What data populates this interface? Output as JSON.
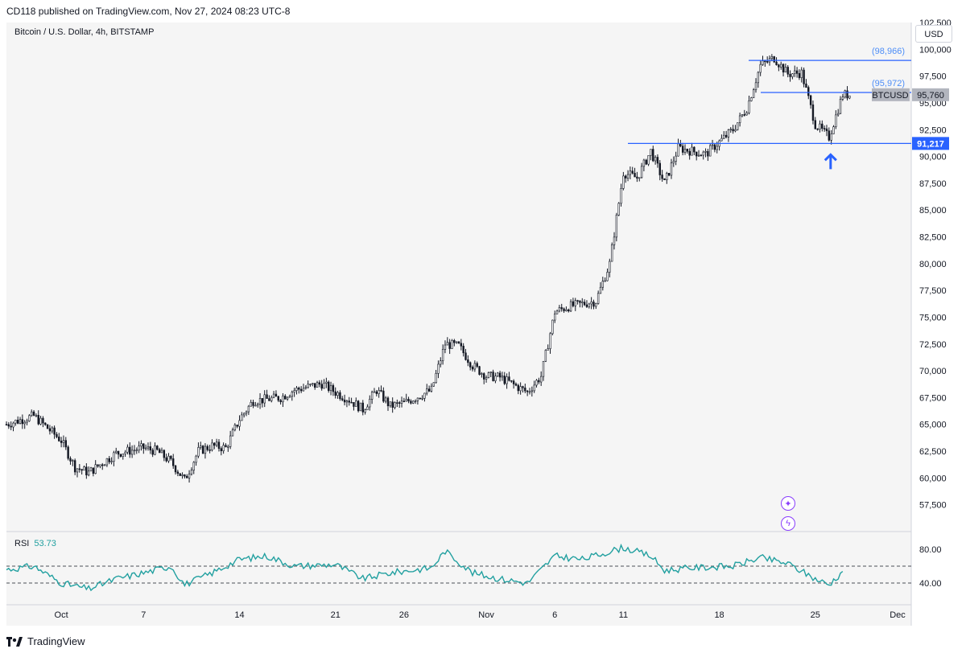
{
  "header": {
    "text": "CD118 published on TradingView.com, Nov 27, 2024 08:23 UTC-8"
  },
  "symbol": {
    "text": "Bitcoin / U.S. Dollar, 4h, BITSTAMP"
  },
  "currency": "USD",
  "rsi": {
    "label": "RSI",
    "value": "53.73"
  },
  "footer": {
    "brand": "TradingView"
  },
  "icons": {
    "sparkle": "sparkle-icon",
    "lightning": "lightning-icon",
    "arrow": "arrow-up-icon",
    "logo": "tradingview-logo-icon"
  },
  "colors": {
    "candle": "#131722",
    "level_line": "#2962ff",
    "rsi_line": "#22a0a0",
    "level_label": "#4e8ef7",
    "current_price_bg": "#b2b5be",
    "support_price_bg": "#2962ff",
    "panel_bg": "#f5f5f5",
    "icon_accent": "#8a3ffc"
  },
  "chart_data": {
    "type": "candlestick",
    "title": "Bitcoin / U.S. Dollar, 4h, BITSTAMP",
    "y_axis": {
      "ylim": [
        55000,
        102500
      ],
      "ticks": [
        "57,500",
        "60,000",
        "62,500",
        "65,000",
        "67,500",
        "70,000",
        "72,500",
        "75,000",
        "77,500",
        "80,000",
        "82,500",
        "85,000",
        "87,500",
        "90,000",
        "92,500",
        "95,000",
        "97,500",
        "100,000",
        "102,500"
      ]
    },
    "x_axis": {
      "ticks": [
        "Oct",
        "7",
        "14",
        "21",
        "26",
        "Nov",
        "6",
        "11",
        "18",
        "25",
        "Dec"
      ]
    },
    "price_path": [
      {
        "date": "2024-09-27",
        "close": 65000
      },
      {
        "date": "2024-09-29",
        "close": 65800
      },
      {
        "date": "2024-10-01",
        "close": 63500
      },
      {
        "date": "2024-10-02",
        "close": 61000
      },
      {
        "date": "2024-10-03",
        "close": 60500
      },
      {
        "date": "2024-10-05",
        "close": 62300
      },
      {
        "date": "2024-10-07",
        "close": 62800
      },
      {
        "date": "2024-10-08",
        "close": 62500
      },
      {
        "date": "2024-10-09",
        "close": 61500
      },
      {
        "date": "2024-10-10",
        "close": 59800
      },
      {
        "date": "2024-10-11",
        "close": 62500
      },
      {
        "date": "2024-10-12",
        "close": 63000
      },
      {
        "date": "2024-10-13",
        "close": 62800
      },
      {
        "date": "2024-10-14",
        "close": 65500
      },
      {
        "date": "2024-10-15",
        "close": 67200
      },
      {
        "date": "2024-10-17",
        "close": 67500
      },
      {
        "date": "2024-10-18",
        "close": 68200
      },
      {
        "date": "2024-10-20",
        "close": 68800
      },
      {
        "date": "2024-10-21",
        "close": 68000
      },
      {
        "date": "2024-10-22",
        "close": 67300
      },
      {
        "date": "2024-10-23",
        "close": 66400
      },
      {
        "date": "2024-10-24",
        "close": 68200
      },
      {
        "date": "2024-10-25",
        "close": 66700
      },
      {
        "date": "2024-10-26",
        "close": 67000
      },
      {
        "date": "2024-10-28",
        "close": 68200
      },
      {
        "date": "2024-10-29",
        "close": 72500
      },
      {
        "date": "2024-10-30",
        "close": 72300
      },
      {
        "date": "2024-10-31",
        "close": 70500
      },
      {
        "date": "2024-11-01",
        "close": 69500
      },
      {
        "date": "2024-11-02",
        "close": 69400
      },
      {
        "date": "2024-11-04",
        "close": 68000
      },
      {
        "date": "2024-11-05",
        "close": 69500
      },
      {
        "date": "2024-11-06",
        "close": 75500
      },
      {
        "date": "2024-11-07",
        "close": 76000
      },
      {
        "date": "2024-11-09",
        "close": 76500
      },
      {
        "date": "2024-11-10",
        "close": 80000
      },
      {
        "date": "2024-11-11",
        "close": 88500
      },
      {
        "date": "2024-11-12",
        "close": 88000
      },
      {
        "date": "2024-11-13",
        "close": 90500
      },
      {
        "date": "2024-11-14",
        "close": 87500
      },
      {
        "date": "2024-11-15",
        "close": 90800
      },
      {
        "date": "2024-11-17",
        "close": 90200
      },
      {
        "date": "2024-11-19",
        "close": 92500
      },
      {
        "date": "2024-11-20",
        "close": 94500
      },
      {
        "date": "2024-11-21",
        "close": 98500
      },
      {
        "date": "2024-11-22",
        "close": 99200
      },
      {
        "date": "2024-11-23",
        "close": 97700
      },
      {
        "date": "2024-11-24",
        "close": 97800
      },
      {
        "date": "2024-11-25",
        "close": 93000
      },
      {
        "date": "2024-11-26",
        "close": 91800
      },
      {
        "date": "2024-11-27",
        "close": 95760
      }
    ],
    "rsi_series": [
      {
        "date": "2024-09-27",
        "rsi": 56
      },
      {
        "date": "2024-09-29",
        "rsi": 60
      },
      {
        "date": "2024-10-01",
        "rsi": 40
      },
      {
        "date": "2024-10-03",
        "rsi": 33
      },
      {
        "date": "2024-10-05",
        "rsi": 45
      },
      {
        "date": "2024-10-07",
        "rsi": 52
      },
      {
        "date": "2024-10-09",
        "rsi": 60
      },
      {
        "date": "2024-10-10",
        "rsi": 38
      },
      {
        "date": "2024-10-12",
        "rsi": 52
      },
      {
        "date": "2024-10-14",
        "rsi": 68
      },
      {
        "date": "2024-10-16",
        "rsi": 72
      },
      {
        "date": "2024-10-18",
        "rsi": 60
      },
      {
        "date": "2024-10-21",
        "rsi": 62
      },
      {
        "date": "2024-10-23",
        "rsi": 45
      },
      {
        "date": "2024-10-25",
        "rsi": 52
      },
      {
        "date": "2024-10-28",
        "rsi": 58
      },
      {
        "date": "2024-10-29",
        "rsi": 78
      },
      {
        "date": "2024-10-31",
        "rsi": 52
      },
      {
        "date": "2024-11-02",
        "rsi": 45
      },
      {
        "date": "2024-11-04",
        "rsi": 40
      },
      {
        "date": "2024-11-06",
        "rsi": 72
      },
      {
        "date": "2024-11-08",
        "rsi": 68
      },
      {
        "date": "2024-11-11",
        "rsi": 82
      },
      {
        "date": "2024-11-13",
        "rsi": 72
      },
      {
        "date": "2024-11-14",
        "rsi": 55
      },
      {
        "date": "2024-11-16",
        "rsi": 58
      },
      {
        "date": "2024-11-19",
        "rsi": 60
      },
      {
        "date": "2024-11-21",
        "rsi": 70
      },
      {
        "date": "2024-11-23",
        "rsi": 63
      },
      {
        "date": "2024-11-25",
        "rsi": 45
      },
      {
        "date": "2024-11-26",
        "rsi": 38
      },
      {
        "date": "2024-11-27",
        "rsi": 53.73
      }
    ],
    "rsi_axis": {
      "ticks": [
        "40.00",
        "80.00"
      ],
      "bands": [
        40,
        60
      ]
    },
    "levels": [
      {
        "value": 98966,
        "label": "(98,966)"
      },
      {
        "value": 95972,
        "label": "(95,972)"
      },
      {
        "value": 91217,
        "label": "91,217"
      }
    ],
    "current_price": {
      "label": "BTCUSD",
      "value": "95,760"
    }
  }
}
